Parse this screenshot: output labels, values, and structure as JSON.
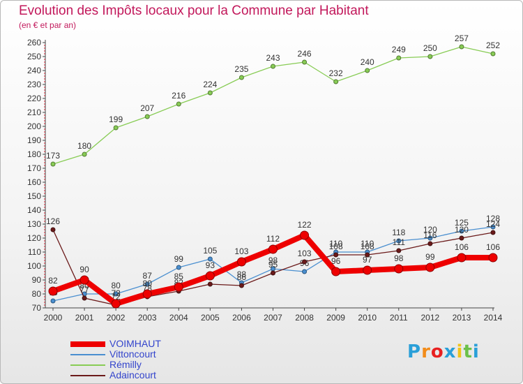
{
  "chart_data": {
    "type": "line",
    "title": "Evolution des Impôts locaux pour la Commune par Habitant",
    "subtitle": "(en € et par an)",
    "xlabel": "",
    "ylabel": "",
    "x": [
      "2000",
      "2001",
      "2002",
      "2003",
      "2004",
      "2005",
      "2006",
      "2007",
      "2008",
      "2009",
      "2010",
      "2011",
      "2012",
      "2013",
      "2014"
    ],
    "ylim": [
      70,
      260
    ],
    "ytick_step": 10,
    "grid": false,
    "legend_position": "bottom-left",
    "series": [
      {
        "name": "Rémilly",
        "color": "#88cc55",
        "values": [
          173,
          180,
          199,
          207,
          216,
          224,
          235,
          243,
          246,
          232,
          240,
          249,
          250,
          257,
          252
        ],
        "labels": [
          "173",
          "180",
          "199",
          "207",
          "216",
          "224",
          "235",
          "243",
          "246",
          "232",
          "240",
          "249",
          "250",
          "257",
          "252"
        ]
      },
      {
        "name": "Vittoncourt",
        "color": "#4a8fd0",
        "values": [
          75,
          80,
          80,
          87,
          99,
          105,
          88,
          98,
          96,
          110,
          110,
          118,
          120,
          125,
          128
        ],
        "labels": [
          "75",
          "80",
          "80",
          "87",
          "99",
          "105",
          "88",
          "98",
          "96",
          "110",
          "110",
          "118",
          "120",
          "125",
          "128"
        ]
      },
      {
        "name": "Adaincourt",
        "color": "#6b1a1a",
        "values": [
          126,
          77,
          72,
          78,
          82,
          87,
          86,
          95,
          103,
          108,
          108,
          111,
          116,
          120,
          124
        ],
        "labels": [
          "126",
          "77",
          "72",
          "78",
          "82",
          "87",
          "86",
          "95",
          "103",
          "108",
          "108",
          "111",
          "116",
          "120",
          "124"
        ]
      },
      {
        "name": "VOIMHAUT",
        "color": "#ee0000",
        "values": [
          82,
          90,
          73,
          80,
          85,
          93,
          103,
          112,
          122,
          96,
          97,
          98,
          99,
          106,
          106
        ],
        "labels": [
          "82",
          "90",
          "73",
          "80",
          "85",
          "93",
          "103",
          "112",
          "122",
          "96",
          "97",
          "98",
          "99",
          "106",
          "106"
        ]
      }
    ]
  },
  "legend": {
    "items": [
      {
        "name": "VOIMHAUT",
        "color": "#ee0000"
      },
      {
        "name": "Vittoncourt",
        "color": "#4a8fd0"
      },
      {
        "name": "Rémilly",
        "color": "#88cc55"
      },
      {
        "name": "Adaincourt",
        "color": "#6b1a1a"
      }
    ]
  },
  "brand": {
    "name": "Proxiti",
    "letters": [
      "P",
      "r",
      "o",
      "x",
      "i",
      "t",
      "i"
    ],
    "colors": [
      "#2a9fd8",
      "#f28c1a",
      "#e82020",
      "#2a9fd8",
      "#f0c419",
      "#6cc04a",
      "#2a9fd8"
    ]
  }
}
